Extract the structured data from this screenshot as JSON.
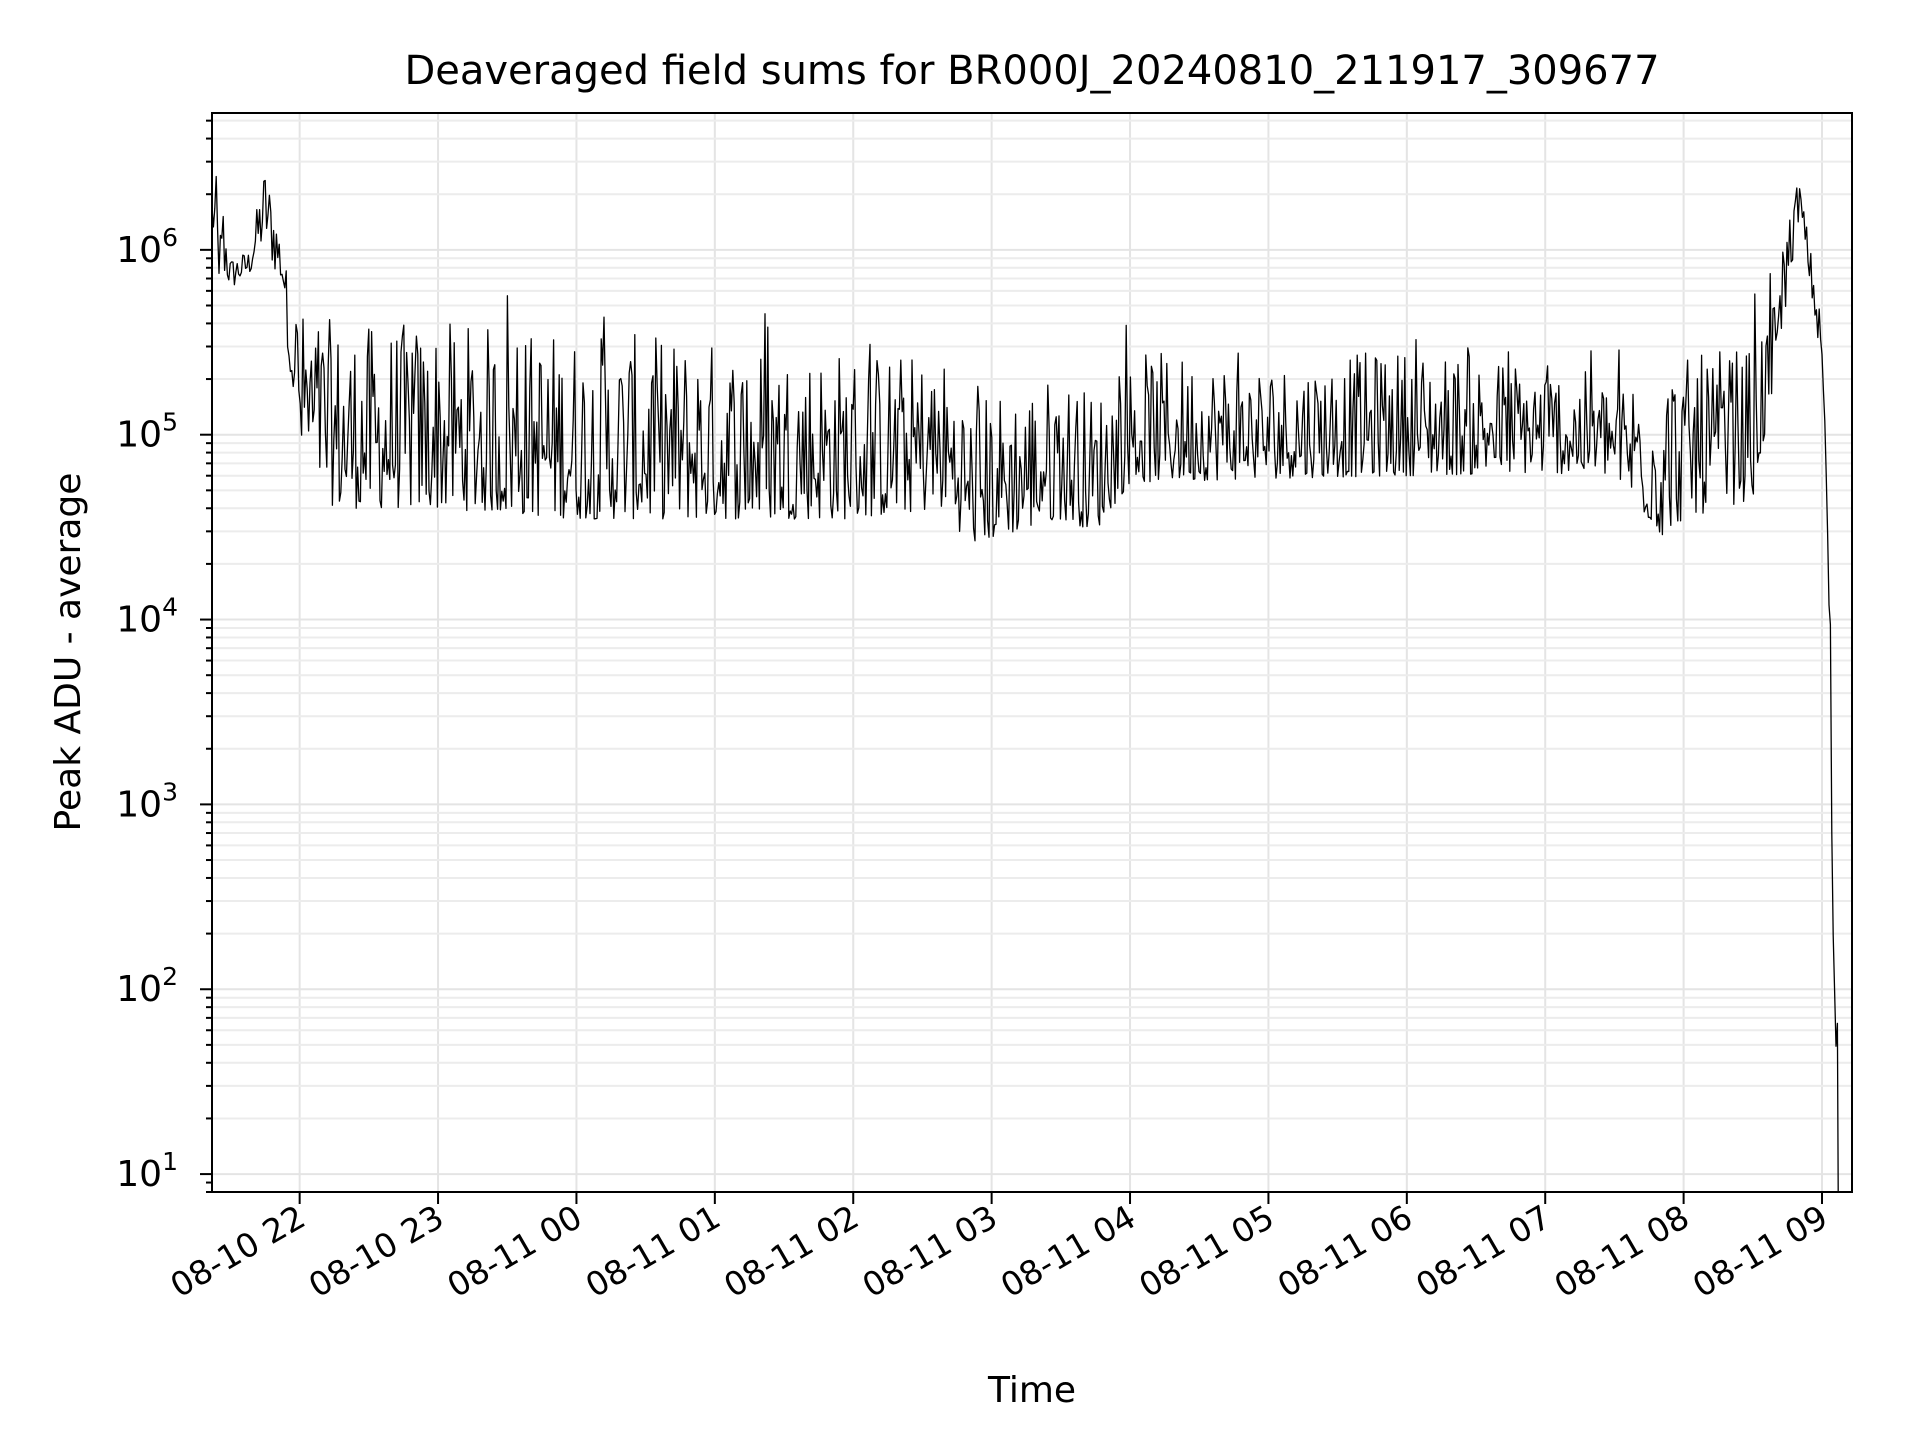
{
  "chart_data": {
    "type": "line",
    "title": "Deaveraged field sums for BR000J_20240810_211917_309677",
    "xlabel": "Time",
    "ylabel": "Peak ADU - average",
    "yscale": "log",
    "ylim": [
      8,
      5500000
    ],
    "xlim": [
      "2024-08-10 21:22",
      "2024-08-11 09:13"
    ],
    "grid": true,
    "x_ticks": [
      {
        "date": "2024-08-10 22:00",
        "label": "08-10 22"
      },
      {
        "date": "2024-08-10 23:00",
        "label": "08-10 23"
      },
      {
        "date": "2024-08-11 00:00",
        "label": "08-11 00"
      },
      {
        "date": "2024-08-11 01:00",
        "label": "08-11 01"
      },
      {
        "date": "2024-08-11 02:00",
        "label": "08-11 02"
      },
      {
        "date": "2024-08-11 03:00",
        "label": "08-11 03"
      },
      {
        "date": "2024-08-11 04:00",
        "label": "08-11 04"
      },
      {
        "date": "2024-08-11 05:00",
        "label": "08-11 05"
      },
      {
        "date": "2024-08-11 06:00",
        "label": "08-11 06"
      },
      {
        "date": "2024-08-11 07:00",
        "label": "08-11 07"
      },
      {
        "date": "2024-08-11 08:00",
        "label": "08-11 08"
      },
      {
        "date": "2024-08-11 09:00",
        "label": "08-11 09"
      }
    ],
    "y_ticks": [
      {
        "value": 10,
        "base": "10",
        "exp": "1"
      },
      {
        "value": 100,
        "base": "10",
        "exp": "2"
      },
      {
        "value": 1000,
        "base": "10",
        "exp": "3"
      },
      {
        "value": 10000,
        "base": "10",
        "exp": "4"
      },
      {
        "value": 100000,
        "base": "10",
        "exp": "5"
      },
      {
        "value": 1000000,
        "base": "10",
        "exp": "6"
      }
    ],
    "series": [
      {
        "color": "#000000",
        "envelope": [
          {
            "t": "2024-08-10 21:22",
            "low": 1200000,
            "high": 2000000
          },
          {
            "t": "2024-08-10 21:25",
            "low": 700000,
            "high": 2900000
          },
          {
            "t": "2024-08-10 21:30",
            "low": 600000,
            "high": 900000
          },
          {
            "t": "2024-08-10 21:38",
            "low": 700000,
            "high": 1000000
          },
          {
            "t": "2024-08-10 21:45",
            "low": 1000000,
            "high": 2900000
          },
          {
            "t": "2024-08-10 21:52",
            "low": 600000,
            "high": 1200000
          },
          {
            "t": "2024-08-10 22:00",
            "low": 80000,
            "high": 900000
          },
          {
            "t": "2024-08-10 22:15",
            "low": 40000,
            "high": 900000
          },
          {
            "t": "2024-08-10 22:30",
            "low": 40000,
            "high": 850000
          },
          {
            "t": "2024-08-10 23:00",
            "low": 40000,
            "high": 900000
          },
          {
            "t": "2024-08-11 00:00",
            "low": 35000,
            "high": 800000
          },
          {
            "t": "2024-08-11 01:00",
            "low": 35000,
            "high": 700000
          },
          {
            "t": "2024-08-11 02:00",
            "low": 35000,
            "high": 600000
          },
          {
            "t": "2024-08-11 02:40",
            "low": 40000,
            "high": 500000
          },
          {
            "t": "2024-08-11 02:50",
            "low": 25000,
            "high": 300000
          },
          {
            "t": "2024-08-11 03:30",
            "low": 35000,
            "high": 400000
          },
          {
            "t": "2024-08-11 03:45",
            "low": 30000,
            "high": 300000
          },
          {
            "t": "2024-08-11 04:00",
            "low": 55000,
            "high": 500000
          },
          {
            "t": "2024-08-11 05:00",
            "low": 58000,
            "high": 400000
          },
          {
            "t": "2024-08-11 06:00",
            "low": 60000,
            "high": 500000
          },
          {
            "t": "2024-08-11 07:00",
            "low": 62000,
            "high": 400000
          },
          {
            "t": "2024-08-11 07:30",
            "low": 60000,
            "high": 300000
          },
          {
            "t": "2024-08-11 07:50",
            "low": 28000,
            "high": 600000
          },
          {
            "t": "2024-08-11 08:00",
            "low": 35000,
            "high": 500000
          },
          {
            "t": "2024-08-11 08:30",
            "low": 45000,
            "high": 600000
          },
          {
            "t": "2024-08-11 08:40",
            "low": 200000,
            "high": 800000
          },
          {
            "t": "2024-08-11 08:50",
            "low": 1500000,
            "high": 2500000
          },
          {
            "t": "2024-08-11 08:55",
            "low": 600000,
            "high": 1000000
          },
          {
            "t": "2024-08-11 09:00",
            "low": 200000,
            "high": 400000
          },
          {
            "t": "2024-08-11 09:03",
            "low": 10000,
            "high": 50000
          },
          {
            "t": "2024-08-11 09:05",
            "low": 100,
            "high": 3000
          },
          {
            "t": "2024-08-11 09:07",
            "low": 8,
            "high": 100
          }
        ]
      }
    ]
  }
}
